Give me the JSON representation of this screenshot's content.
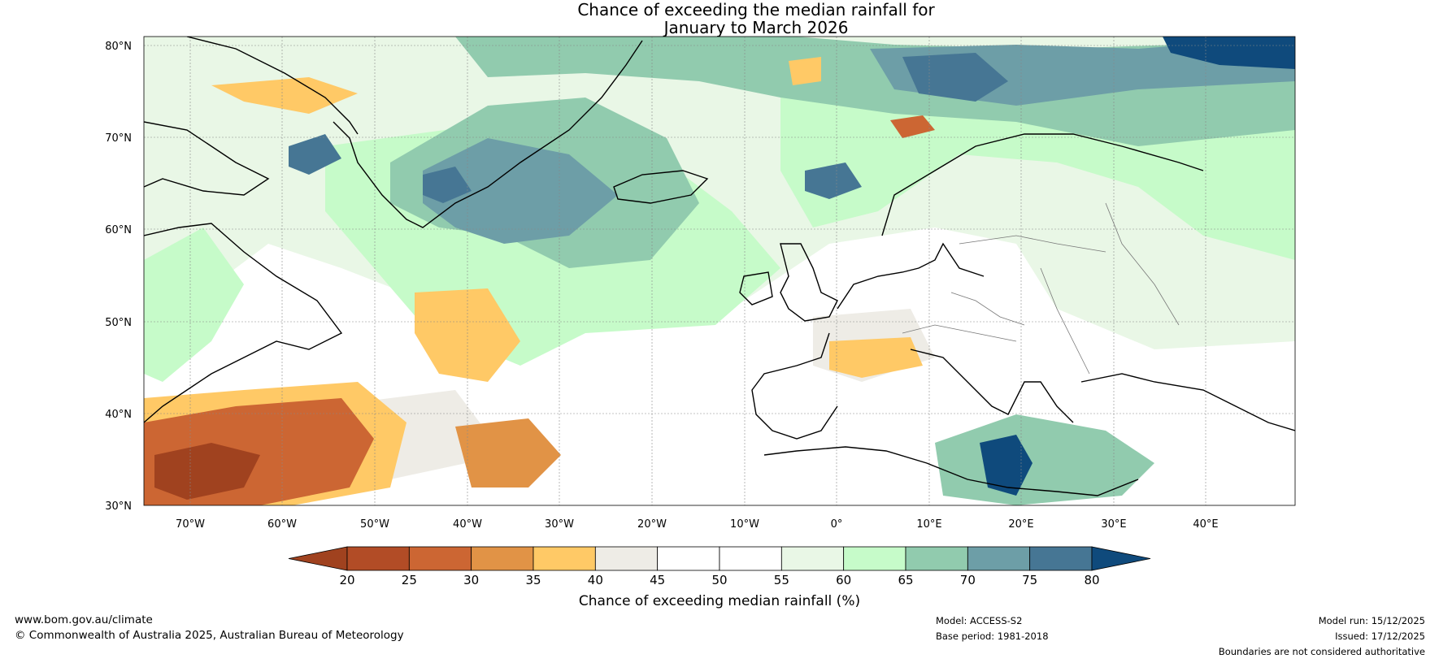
{
  "title": {
    "line1": "Chance of exceeding the median rainfall for",
    "line2": "January to March 2026"
  },
  "map": {
    "region": "North Atlantic and Europe",
    "latitude_labels": [
      "80°N",
      "70°N",
      "60°N",
      "50°N",
      "40°N",
      "30°N"
    ],
    "longitude_labels": [
      "70°W",
      "60°W",
      "50°W",
      "40°W",
      "30°W",
      "20°W",
      "10°W",
      "0°",
      "10°E",
      "20°E",
      "30°E",
      "40°E"
    ],
    "ocean_background_color": "#ffffff"
  },
  "colorbar": {
    "label": "Chance of exceeding median rainfall (%)",
    "tick_labels": [
      "20",
      "25",
      "30",
      "35",
      "40",
      "45",
      "50",
      "55",
      "60",
      "65",
      "70",
      "75",
      "80"
    ],
    "colors": [
      "#a0421f",
      "#b24c26",
      "#cc6633",
      "#e19346",
      "#ffc966",
      "#eeece6",
      "#ffffff",
      "#ffffff",
      "#e9f7e6",
      "#c6fbc9",
      "#91cbae",
      "#6d9ea7",
      "#467694",
      "#0f4a7c"
    ]
  },
  "footer": {
    "url": "www.bom.gov.au/climate",
    "copyright": "© Commonwealth of Australia 2025, Australian Bureau of Meteorology",
    "model": "Model: ACCESS-S2",
    "base_period": "Base period: 1981-2018",
    "model_run": "Model run: 15/12/2025",
    "issued": "Issued: 17/12/2025",
    "disclaimer": "Boundaries are not considered authoritative"
  }
}
